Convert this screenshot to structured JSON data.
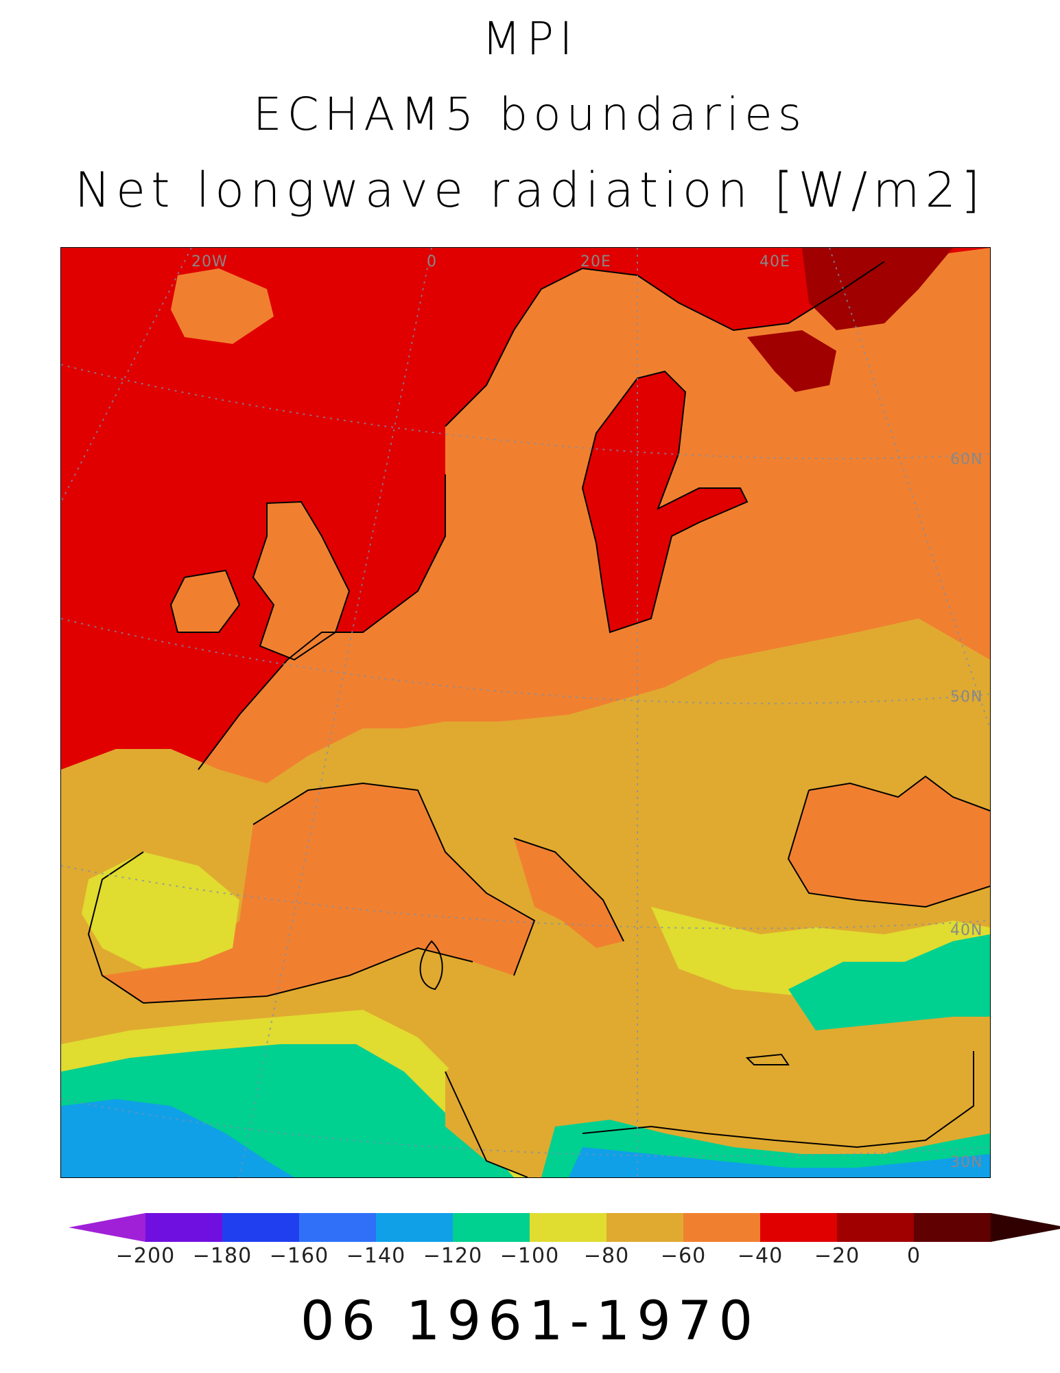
{
  "title": {
    "line1": "MPI",
    "line2": "ECHAM5 boundaries",
    "line3": "Net longwave radiation [W/m2]"
  },
  "map": {
    "longitude_labels": [
      "20W",
      "0",
      "20E",
      "40E"
    ],
    "latitude_labels": [
      "60N",
      "50N",
      "40N",
      "30N"
    ],
    "variable": "Net longwave radiation",
    "units": "W/m2"
  },
  "legend": {
    "levels": [
      "-200",
      "-180",
      "-160",
      "-140",
      "-120",
      "-100",
      "-80",
      "-60",
      "-40",
      "-20",
      "0"
    ],
    "colors": [
      "#a020d8",
      "#7010e0",
      "#2040f0",
      "#3070f8",
      "#10a0e8",
      "#00d090",
      "#e0dc30",
      "#e0aa30",
      "#f08030",
      "#e00000",
      "#a00000",
      "#600000",
      "#300000"
    ]
  },
  "period": "06 1961-1970"
}
